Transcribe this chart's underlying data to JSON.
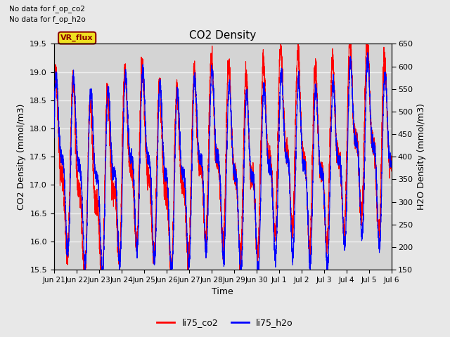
{
  "title": "CO2 Density",
  "xlabel": "Time",
  "ylabel_left": "CO2 Density (mmol/m3)",
  "ylabel_right": "H2O Density (mmol/m3)",
  "top_text_line1": "No data for f_op_co2",
  "top_text_line2": "No data for f_op_h2o",
  "vr_flux_label": "VR_flux",
  "legend_labels": [
    "li75_co2",
    "li75_h2o"
  ],
  "co2_color": "red",
  "h2o_color": "blue",
  "ylim_left": [
    15.5,
    19.5
  ],
  "ylim_right": [
    150,
    650
  ],
  "yticks_left": [
    15.5,
    16.0,
    16.5,
    17.0,
    17.5,
    18.0,
    18.5,
    19.0,
    19.5
  ],
  "yticks_right": [
    150,
    200,
    250,
    300,
    350,
    400,
    450,
    500,
    550,
    600,
    650
  ],
  "background_color": "#e8e8e8",
  "plot_bg_color": "#d4d4d4",
  "grid_color": "#f0f0f0",
  "xtick_labels": [
    "Jun 21",
    "Jun 22",
    "Jun 23",
    "Jun 24",
    "Jun 25",
    "Jun 26",
    "Jun 27",
    "Jun 28",
    "Jun 29",
    "Jun 30",
    "Jul 1",
    "Jul 2",
    "Jul 3",
    "Jul 4",
    "Jul 5",
    "Jul 6"
  ],
  "num_days": 15,
  "co2_mean": 17.7,
  "co2_amp": 1.8,
  "h2o_mean": 400,
  "h2o_amp": 220
}
